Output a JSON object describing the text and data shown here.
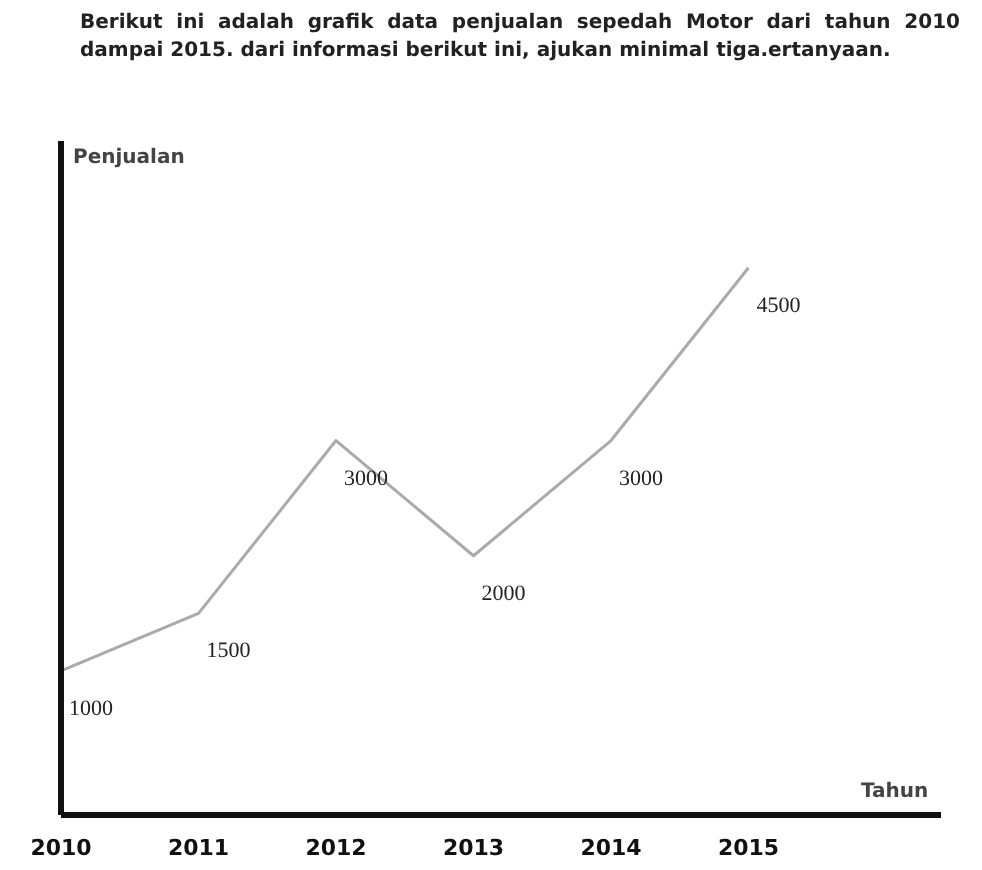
{
  "chart_data": {
    "type": "line",
    "title": "Berikut ini adalah grafik data penjualan sepedah Motor dari tahun 2010 dampai 2015. dari informasi berikut ini, ajukan minimal tiga.ertanyaan.",
    "xlabel": "Tahun",
    "ylabel": "Penjualan",
    "x": [
      2010,
      2011,
      2012,
      2013,
      2014,
      2015
    ],
    "series": [
      {
        "color": "#aaaaaa",
        "values": [
          1000,
          1500,
          3000,
          2000,
          3000,
          4500
        ]
      }
    ],
    "xlim": [
      2010,
      2016.4
    ],
    "xticks": [
      2010,
      2011,
      2012,
      2013,
      2014,
      2015
    ],
    "ylim": [
      -250,
      5600
    ],
    "data_labels": true,
    "grid": false,
    "marker": "none",
    "line_style": "solid",
    "tick_labels": "x"
  }
}
